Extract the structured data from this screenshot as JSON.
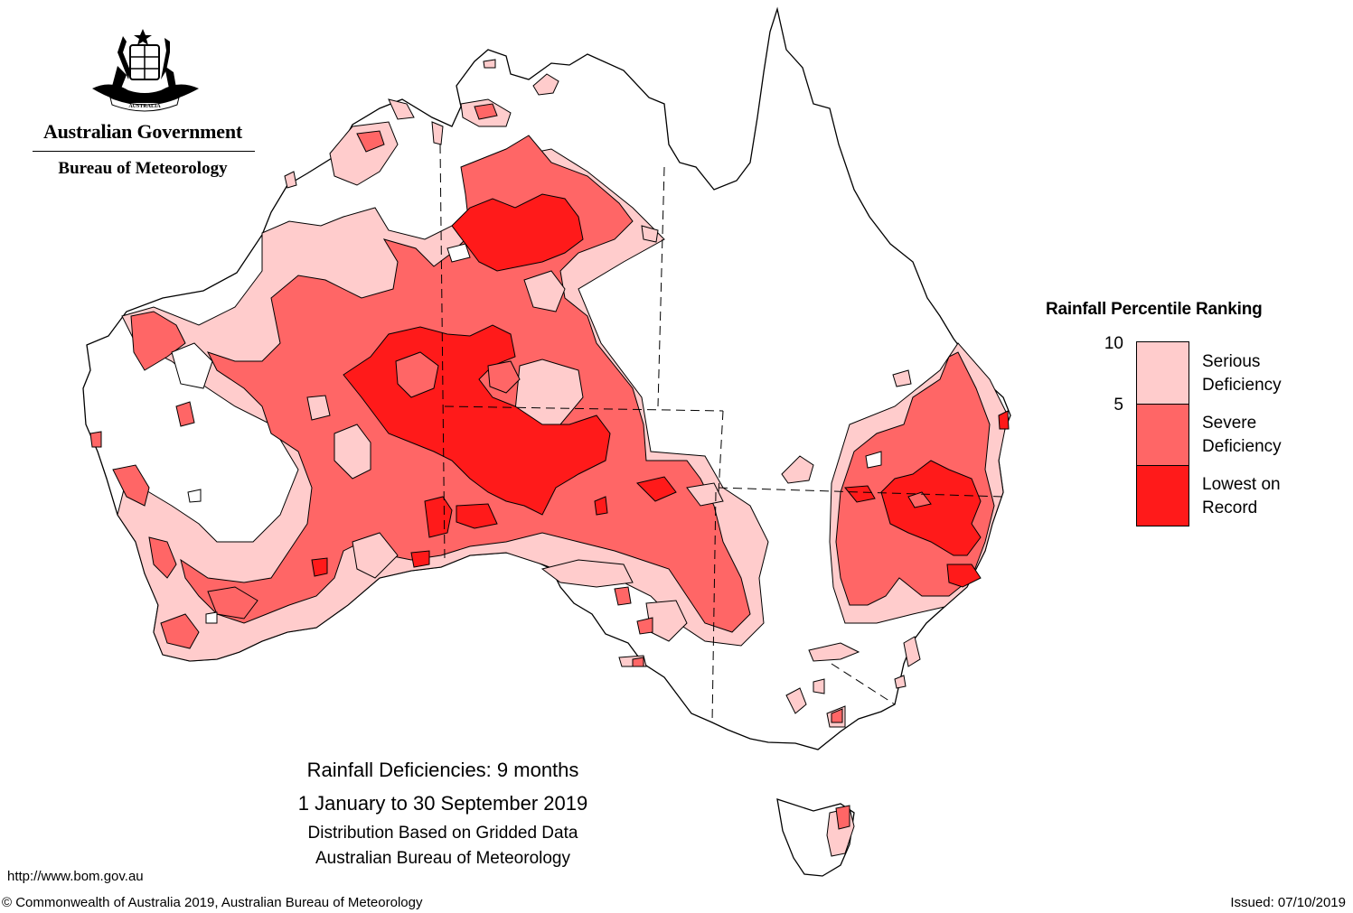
{
  "header": {
    "government": "Australian Government",
    "bureau": "Bureau of Meteorology",
    "crest_icon": "coat-of-arms-icon",
    "crest_text": "AUSTRALIA"
  },
  "legend": {
    "title": "Rainfall Percentile Ranking",
    "ticks": [
      "10",
      "5"
    ],
    "categories": [
      {
        "label_line1": "Serious",
        "label_line2": "Deficiency",
        "color": "#ffcccc"
      },
      {
        "label_line1": "Severe",
        "label_line2": "Deficiency",
        "color": "#ff6666"
      },
      {
        "label_line1": "Lowest on",
        "label_line2": "Record",
        "color": "#ff1a1a"
      }
    ]
  },
  "caption": {
    "title": "Rainfall Deficiencies: 9 months",
    "period": "1 January to 30 September 2019",
    "distribution": "Distribution Based on Gridded Data",
    "agency": "Australian Bureau of Meteorology"
  },
  "footer": {
    "url": "http://www.bom.gov.au",
    "copyright": "© Commonwealth of Australia 2019, Australian Bureau of Meteorology",
    "issued": "Issued: 07/10/2019"
  }
}
